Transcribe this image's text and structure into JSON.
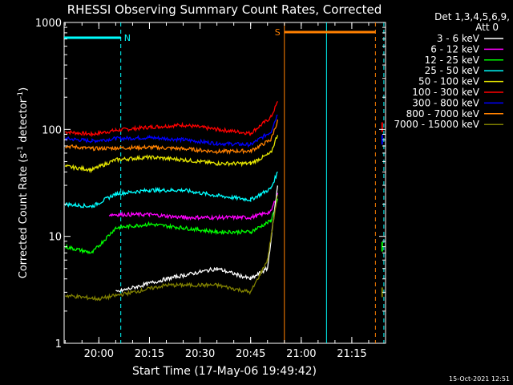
{
  "chart_data": {
    "type": "line",
    "title": "RHESSI Observing Summary Count Rates, Corrected",
    "xlabel": "Start Time (17-May-06 19:49:42)",
    "ylabel_main": "Corrected Count Rate (s",
    "ylabel_sup1": "-1",
    "ylabel_mid": " detector",
    "ylabel_sup2": "-1",
    "ylabel_end": ")",
    "y_scale": "log",
    "ylim": [
      1,
      1000
    ],
    "xlim": [
      "19:49:42",
      "21:25:00"
    ],
    "x_ticks": [
      "20:00",
      "20:15",
      "20:30",
      "20:45",
      "21:00",
      "21:15"
    ],
    "y_ticks": [
      "1",
      "10",
      "100",
      "1000"
    ],
    "legend_header": [
      "Det 1,3,4,5,6,9,",
      "Att 0"
    ],
    "legend": [
      {
        "label": "3 - 6 keV",
        "color": "#ffffff"
      },
      {
        "label": "6 - 12 keV",
        "color": "#ff00ff"
      },
      {
        "label": "12 - 25 keV",
        "color": "#00ff00"
      },
      {
        "label": "25 - 50 keV",
        "color": "#00ffff"
      },
      {
        "label": "50 - 100 keV",
        "color": "#e6e600"
      },
      {
        "label": "100 - 300 keV",
        "color": "#ff0000"
      },
      {
        "label": "300 - 800 keV",
        "color": "#0000ff"
      },
      {
        "label": "800 - 7000 keV",
        "color": "#ff8000"
      },
      {
        "label": "7000 - 15000 keV",
        "color": "#808000"
      }
    ],
    "flags": [
      {
        "label": "N",
        "color": "#00ffff",
        "start": "19:49:42",
        "end": "20:06:30"
      },
      {
        "label": "S",
        "color": "#ff8000",
        "start": "20:55:00",
        "end": "21:22:00"
      }
    ],
    "series": [
      {
        "name": "100 - 300 keV",
        "color": "#ff0000",
        "points": [
          [
            "19:50",
            95
          ],
          [
            "19:58",
            90
          ],
          [
            "20:05",
            98
          ],
          [
            "20:15",
            105
          ],
          [
            "20:25",
            110
          ],
          [
            "20:35",
            100
          ],
          [
            "20:45",
            92
          ],
          [
            "20:51",
            130
          ],
          [
            "20:53",
            180
          ]
        ]
      },
      {
        "name": "300 - 800 keV",
        "color": "#0000ff",
        "points": [
          [
            "19:50",
            82
          ],
          [
            "19:58",
            78
          ],
          [
            "20:05",
            82
          ],
          [
            "20:15",
            84
          ],
          [
            "20:25",
            80
          ],
          [
            "20:35",
            74
          ],
          [
            "20:45",
            72
          ],
          [
            "20:51",
            95
          ],
          [
            "20:53",
            140
          ]
        ]
      },
      {
        "name": "800 - 7000 keV",
        "color": "#ff8000",
        "points": [
          [
            "19:50",
            70
          ],
          [
            "19:58",
            66
          ],
          [
            "20:05",
            67
          ],
          [
            "20:15",
            68
          ],
          [
            "20:25",
            66
          ],
          [
            "20:35",
            62
          ],
          [
            "20:45",
            63
          ],
          [
            "20:51",
            80
          ],
          [
            "20:53",
            120
          ]
        ]
      },
      {
        "name": "50 - 100 keV",
        "color": "#e6e600",
        "points": [
          [
            "19:50",
            45
          ],
          [
            "19:58",
            42
          ],
          [
            "20:05",
            52
          ],
          [
            "20:15",
            55
          ],
          [
            "20:25",
            52
          ],
          [
            "20:35",
            48
          ],
          [
            "20:45",
            48
          ],
          [
            "20:51",
            60
          ],
          [
            "20:53",
            90
          ]
        ]
      },
      {
        "name": "25 - 50 keV",
        "color": "#00ffff",
        "points": [
          [
            "19:50",
            20
          ],
          [
            "19:58",
            19
          ],
          [
            "20:05",
            25
          ],
          [
            "20:15",
            27
          ],
          [
            "20:25",
            27
          ],
          [
            "20:35",
            24
          ],
          [
            "20:45",
            22
          ],
          [
            "20:51",
            28
          ],
          [
            "20:53",
            40
          ]
        ]
      },
      {
        "name": "6 - 12 keV",
        "color": "#ff00ff",
        "points": [
          [
            "20:03",
            16
          ],
          [
            "20:15",
            16
          ],
          [
            "20:25",
            15
          ],
          [
            "20:35",
            15
          ],
          [
            "20:45",
            15
          ],
          [
            "20:51",
            17
          ],
          [
            "20:53",
            25
          ]
        ]
      },
      {
        "name": "12 - 25 keV",
        "color": "#00ff00",
        "points": [
          [
            "19:50",
            8
          ],
          [
            "19:58",
            7
          ],
          [
            "20:05",
            12
          ],
          [
            "20:15",
            13
          ],
          [
            "20:25",
            12
          ],
          [
            "20:35",
            11
          ],
          [
            "20:45",
            11
          ],
          [
            "20:51",
            14
          ],
          [
            "20:53",
            22
          ]
        ]
      },
      {
        "name": "3 - 6 keV",
        "color": "#ffffff",
        "points": [
          [
            "20:05",
            3
          ],
          [
            "20:20",
            4
          ],
          [
            "20:35",
            5
          ],
          [
            "20:45",
            4
          ],
          [
            "20:50",
            5
          ],
          [
            "20:53",
            30
          ]
        ]
      },
      {
        "name": "7000 - 15000 keV",
        "color": "#808000",
        "points": [
          [
            "19:50",
            2.8
          ],
          [
            "20:00",
            2.6
          ],
          [
            "20:10",
            3
          ],
          [
            "20:20",
            3.5
          ],
          [
            "20:35",
            3.5
          ],
          [
            "20:45",
            3
          ],
          [
            "20:50",
            6
          ],
          [
            "20:53",
            25
          ]
        ]
      }
    ],
    "tail_points": [
      {
        "color": "#ff0000",
        "time": "21:24:00",
        "value": 105
      },
      {
        "color": "#0000ff",
        "time": "21:24:00",
        "value": 80
      },
      {
        "color": "#00ff00",
        "time": "21:24:00",
        "value": 8
      },
      {
        "color": "#808000",
        "time": "21:24:00",
        "value": 3
      }
    ],
    "vertical_markers": [
      {
        "time": "20:06:30",
        "color": "#00ffff",
        "style": "dashed"
      },
      {
        "time": "20:55:00",
        "color": "#ff8000",
        "style": "solid"
      },
      {
        "time": "21:07:30",
        "color": "#00ffff",
        "style": "solid"
      },
      {
        "time": "21:22:00",
        "color": "#ff8000",
        "style": "dashed"
      },
      {
        "time": "21:24:30",
        "color": "#00ffff",
        "style": "dashed"
      }
    ]
  },
  "footer_timestamp": "15-Oct-2021 12:51"
}
